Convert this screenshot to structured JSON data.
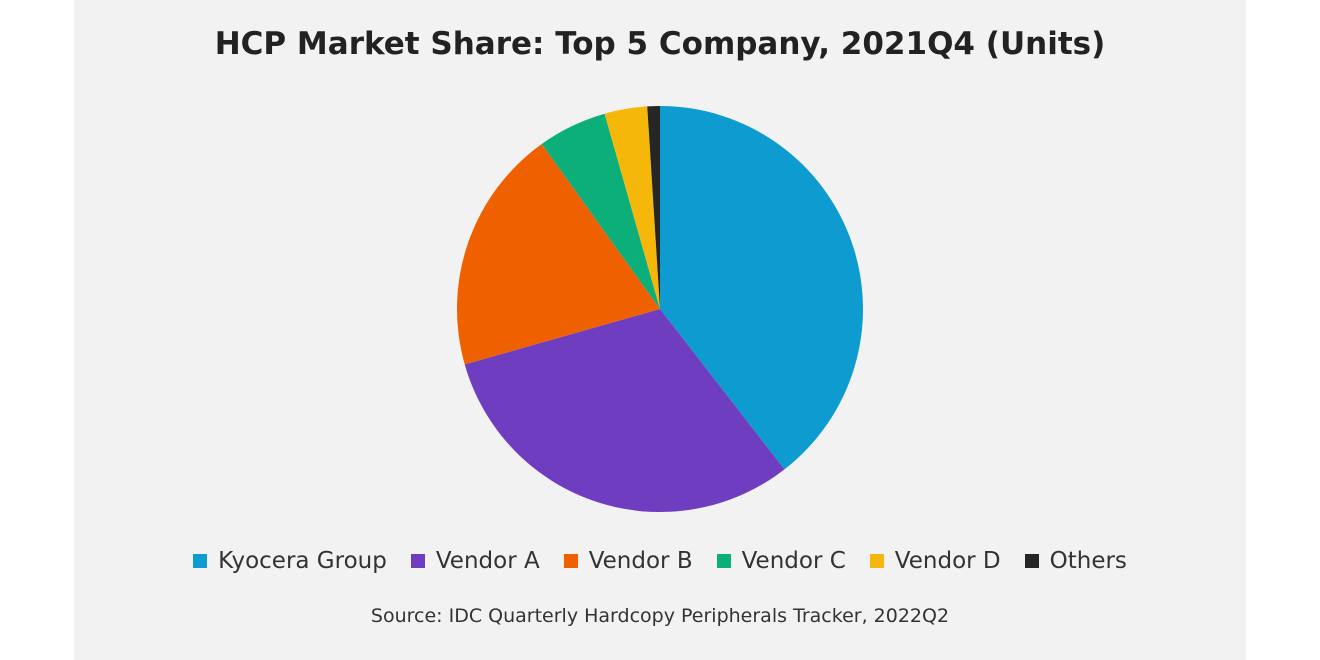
{
  "chart_data": {
    "type": "pie",
    "title": "HCP Market Share: Top 5 Company, 2021Q4 (Units)",
    "source": "Source: IDC Quarterly Hardcopy Peripherals Tracker, 2022Q2",
    "legend_placement": "bottom",
    "start_angle_deg": 0,
    "direction": "clockwise",
    "slices": [
      {
        "label": "Kyocera Group",
        "value": 39.5,
        "color": "#0e9bd0"
      },
      {
        "label": "Vendor A",
        "value": 31.1,
        "color": "#6f3dbf"
      },
      {
        "label": "Vendor B",
        "value": 19.5,
        "color": "#ef6100"
      },
      {
        "label": "Vendor C",
        "value": 5.5,
        "color": "#0caf7a"
      },
      {
        "label": "Vendor D",
        "value": 3.4,
        "color": "#f5b80a"
      },
      {
        "label": "Others",
        "value": 1.0,
        "color": "#262626"
      }
    ]
  }
}
